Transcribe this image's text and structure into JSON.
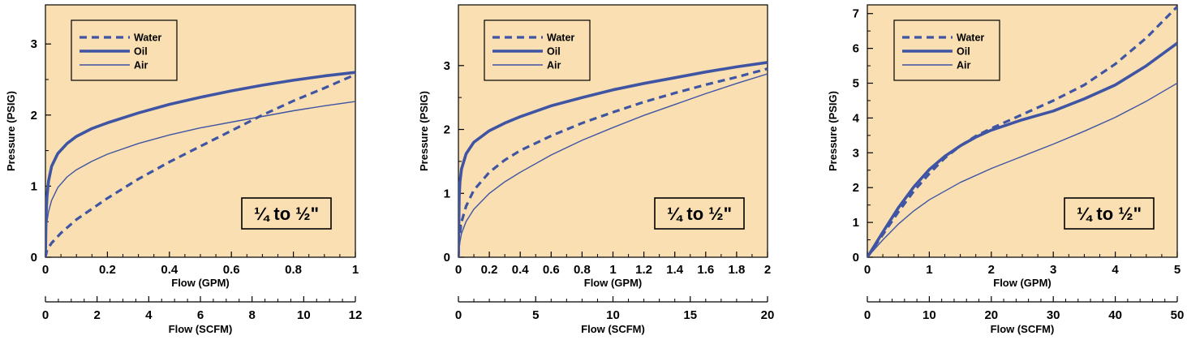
{
  "colors": {
    "plot_bg": "#f9dfb1",
    "curve": "#3f55a4",
    "axis": "#000000"
  },
  "legend": {
    "water": "Water",
    "oil": "Oil",
    "air": "Air"
  },
  "chart_data": [
    {
      "type": "line",
      "badge": "¼ to ½\"",
      "xlabel": "Flow (GPM)",
      "ylabel": "Pressure (PSIG)",
      "xlim": [
        0,
        1
      ],
      "ylim": [
        0,
        3.55
      ],
      "x_ticks": [
        0,
        0.2,
        0.4,
        0.6,
        0.8,
        1
      ],
      "x_tick_labels": [
        "0",
        "0.2",
        "0.4",
        "0.6",
        "0.8",
        "1"
      ],
      "y_ticks": [
        0,
        1,
        2,
        3
      ],
      "y_tick_labels": [
        "0",
        "1",
        "2",
        "3"
      ],
      "secondary_x": {
        "label": "Flow (SCFM)",
        "lim": [
          0,
          12
        ],
        "ticks": [
          0,
          2,
          4,
          6,
          8,
          10,
          12
        ],
        "tick_labels": [
          "0",
          "2",
          "4",
          "6",
          "8",
          "10",
          "12"
        ]
      },
      "series": [
        {
          "name": "Water",
          "style": "dashed",
          "x": [
            0,
            0.005,
            0.02,
            0.05,
            0.1,
            0.15,
            0.2,
            0.3,
            0.4,
            0.5,
            0.6,
            0.7,
            0.8,
            0.9,
            1.0
          ],
          "y": [
            0,
            0.1,
            0.2,
            0.34,
            0.53,
            0.68,
            0.83,
            1.1,
            1.34,
            1.56,
            1.78,
            2.0,
            2.2,
            2.38,
            2.57
          ]
        },
        {
          "name": "Oil",
          "style": "thick",
          "x": [
            0,
            0.002,
            0.005,
            0.01,
            0.02,
            0.04,
            0.07,
            0.1,
            0.15,
            0.2,
            0.3,
            0.4,
            0.5,
            0.6,
            0.7,
            0.8,
            0.9,
            1.0
          ],
          "y": [
            0,
            0.6,
            0.85,
            1.07,
            1.28,
            1.46,
            1.6,
            1.7,
            1.81,
            1.89,
            2.03,
            2.15,
            2.25,
            2.34,
            2.42,
            2.49,
            2.55,
            2.6
          ]
        },
        {
          "name": "Air",
          "style": "thin",
          "x": [
            0,
            0.002,
            0.005,
            0.01,
            0.02,
            0.04,
            0.07,
            0.1,
            0.15,
            0.2,
            0.3,
            0.4,
            0.5,
            0.6,
            0.7,
            0.8,
            0.9,
            1.0
          ],
          "y": [
            0,
            0.35,
            0.5,
            0.64,
            0.8,
            0.98,
            1.13,
            1.23,
            1.35,
            1.45,
            1.6,
            1.72,
            1.82,
            1.9,
            1.98,
            2.06,
            2.13,
            2.19
          ]
        }
      ]
    },
    {
      "type": "line",
      "badge": "¼ to ½\"",
      "xlabel": "Flow (GPM)",
      "ylabel": "Pressure (PSIG)",
      "xlim": [
        0,
        2
      ],
      "ylim": [
        0,
        3.95
      ],
      "x_ticks": [
        0,
        0.2,
        0.4,
        0.6,
        0.8,
        1,
        1.2,
        1.4,
        1.6,
        1.8,
        2
      ],
      "x_tick_labels": [
        "0",
        "0.2",
        "0.4",
        "0.6",
        "0.8",
        "1",
        "1.2",
        "1.4",
        "1.6",
        "1.8",
        "2"
      ],
      "y_ticks": [
        0,
        1,
        2,
        3
      ],
      "y_tick_labels": [
        "0",
        "1",
        "2",
        "3"
      ],
      "secondary_x": {
        "label": "Flow (SCFM)",
        "lim": [
          0,
          20
        ],
        "ticks": [
          0,
          5,
          10,
          15,
          20
        ],
        "tick_labels": [
          "0",
          "5",
          "10",
          "15",
          "20"
        ]
      },
      "series": [
        {
          "name": "Water",
          "style": "dashed",
          "x": [
            0,
            0.005,
            0.02,
            0.05,
            0.1,
            0.2,
            0.3,
            0.4,
            0.6,
            0.8,
            1.0,
            1.2,
            1.4,
            1.6,
            1.8,
            2.0
          ],
          "y": [
            0,
            0.3,
            0.55,
            0.8,
            1.05,
            1.33,
            1.52,
            1.67,
            1.9,
            2.1,
            2.27,
            2.43,
            2.57,
            2.7,
            2.82,
            2.95
          ]
        },
        {
          "name": "Oil",
          "style": "thick",
          "x": [
            0,
            0.005,
            0.01,
            0.02,
            0.05,
            0.1,
            0.2,
            0.3,
            0.4,
            0.6,
            0.8,
            1.0,
            1.2,
            1.4,
            1.6,
            1.8,
            2.0
          ],
          "y": [
            0,
            0.95,
            1.18,
            1.38,
            1.62,
            1.8,
            1.98,
            2.1,
            2.2,
            2.37,
            2.5,
            2.62,
            2.72,
            2.81,
            2.9,
            2.98,
            3.05
          ]
        },
        {
          "name": "Air",
          "style": "thin",
          "x": [
            0,
            0.005,
            0.02,
            0.05,
            0.1,
            0.2,
            0.3,
            0.4,
            0.6,
            0.8,
            1.0,
            1.2,
            1.4,
            1.6,
            1.8,
            2.0
          ],
          "y": [
            0,
            0.18,
            0.37,
            0.56,
            0.75,
            1.0,
            1.18,
            1.33,
            1.6,
            1.83,
            2.03,
            2.22,
            2.39,
            2.56,
            2.72,
            2.87
          ]
        }
      ]
    },
    {
      "type": "line",
      "badge": "¼ to ½\"",
      "xlabel": "Flow (GPM)",
      "ylabel": "Pressure (PSIG)",
      "xlim": [
        0,
        5
      ],
      "ylim": [
        0,
        7.25
      ],
      "x_ticks": [
        0,
        1,
        2,
        3,
        4,
        5
      ],
      "x_tick_labels": [
        "0",
        "1",
        "2",
        "3",
        "4",
        "5"
      ],
      "y_ticks": [
        0,
        1,
        2,
        3,
        4,
        5,
        6,
        7
      ],
      "y_tick_labels": [
        "0",
        "1",
        "2",
        "3",
        "4",
        "5",
        "6",
        "7"
      ],
      "secondary_x": {
        "label": "Flow (SCFM)",
        "lim": [
          0,
          50
        ],
        "ticks": [
          0,
          10,
          20,
          30,
          40,
          50
        ],
        "tick_labels": [
          "0",
          "10",
          "20",
          "30",
          "40",
          "50"
        ]
      },
      "series": [
        {
          "name": "Water",
          "style": "dashed",
          "x": [
            0,
            0.25,
            0.5,
            0.75,
            1.0,
            1.25,
            1.5,
            1.75,
            2.0,
            2.5,
            3.0,
            3.5,
            4.0,
            4.5,
            5.0
          ],
          "y": [
            0,
            0.65,
            1.3,
            1.9,
            2.4,
            2.85,
            3.2,
            3.48,
            3.7,
            4.1,
            4.5,
            4.95,
            5.55,
            6.3,
            7.2
          ]
        },
        {
          "name": "Oil",
          "style": "thick",
          "x": [
            0,
            0.25,
            0.5,
            0.75,
            1.0,
            1.25,
            1.5,
            1.75,
            2.0,
            2.5,
            3.0,
            3.5,
            4.0,
            4.5,
            5.0
          ],
          "y": [
            0,
            0.72,
            1.42,
            2.02,
            2.52,
            2.9,
            3.2,
            3.45,
            3.65,
            3.95,
            4.2,
            4.55,
            4.95,
            5.5,
            6.15
          ]
        },
        {
          "name": "Air",
          "style": "thin",
          "x": [
            0,
            0.25,
            0.5,
            0.75,
            1.0,
            1.5,
            2.0,
            2.5,
            3.0,
            3.5,
            4.0,
            4.5,
            5.0
          ],
          "y": [
            0,
            0.5,
            0.95,
            1.33,
            1.65,
            2.15,
            2.55,
            2.9,
            3.25,
            3.62,
            4.02,
            4.48,
            5.0
          ]
        }
      ]
    }
  ]
}
